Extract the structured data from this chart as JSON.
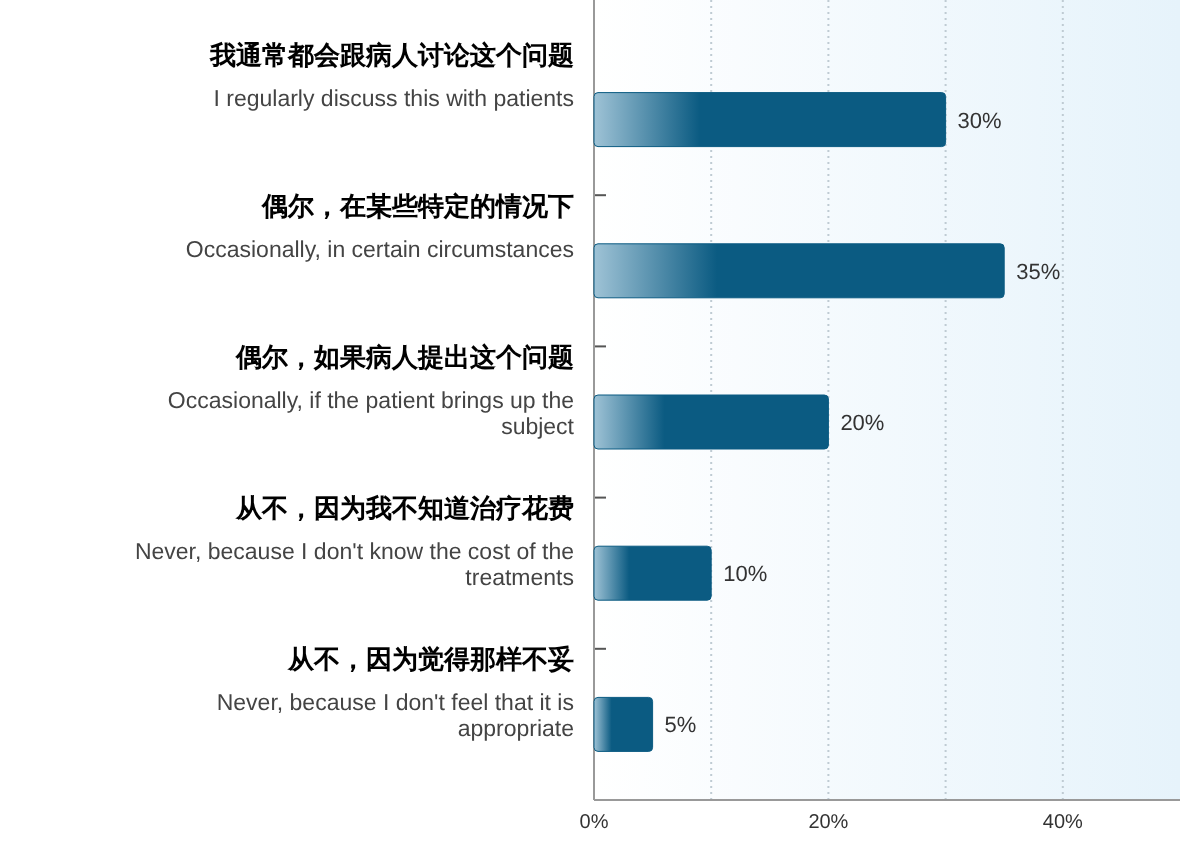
{
  "chart_data": {
    "type": "bar",
    "orientation": "horizontal",
    "categories": [
      "我通常都会跟病人讨论这个问题\nI regularly discuss this with patients",
      "偶尔，在某些特定的情况下\nOccasionally, in certain circumstances",
      "偶尔，如果病人提出这个问题\nOccasionally, if the patient brings up the\nsubject",
      "从不，因为我不知道治疗花费\nNever, because I don't know the cost of the\ntreatments",
      "从不，因为觉得那样不妥\nNever, because I don't feel that it is\nappropriate"
    ],
    "values": [
      30,
      35,
      20,
      10,
      5
    ],
    "value_labels": [
      "30%",
      "35%",
      "20%",
      "10%",
      "5%"
    ],
    "color": "#0b5b82",
    "xlim": [
      0,
      50
    ],
    "xticks": [
      {
        "value": 0,
        "label": "0%"
      },
      {
        "value": 10,
        "label": null
      },
      {
        "value": 20,
        "label": "20%"
      },
      {
        "value": 30,
        "label": null
      },
      {
        "value": 40,
        "label": "40%"
      }
    ],
    "grid": "x"
  }
}
